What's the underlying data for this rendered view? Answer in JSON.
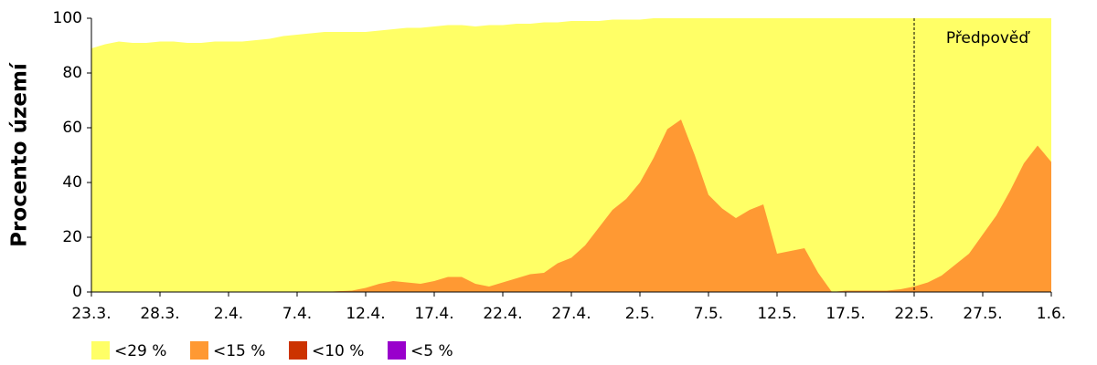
{
  "chart_data": {
    "type": "area",
    "ylabel": "Procento území",
    "annotation": {
      "text": "Předpověď",
      "x": "22.5."
    },
    "categories": [
      "23.3.",
      null,
      null,
      null,
      null,
      "28.3.",
      null,
      null,
      null,
      null,
      "2.4.",
      null,
      null,
      null,
      null,
      "7.4.",
      null,
      null,
      null,
      null,
      "12.4.",
      null,
      null,
      null,
      null,
      "17.4.",
      null,
      null,
      null,
      null,
      "22.4.",
      null,
      null,
      null,
      null,
      "27.4.",
      null,
      null,
      null,
      null,
      "2.5.",
      null,
      null,
      null,
      null,
      "7.5.",
      null,
      null,
      null,
      null,
      "12.5.",
      null,
      null,
      null,
      null,
      "17.5.",
      null,
      null,
      null,
      null,
      "22.5.",
      null,
      null,
      null,
      null,
      "27.5.",
      null,
      null,
      null,
      null,
      "1.6."
    ],
    "ylim": [
      0,
      100
    ],
    "yticks": [
      0,
      20,
      40,
      60,
      80,
      100
    ],
    "series": [
      {
        "name": "<29 %",
        "color": "#ffff66",
        "values": [
          89,
          90.5,
          91.5,
          91,
          91,
          91.5,
          91.5,
          91,
          91,
          91.5,
          91.5,
          91.5,
          92,
          92.5,
          93.5,
          94,
          94.5,
          95,
          95,
          95,
          95,
          95.5,
          96,
          96.5,
          96.5,
          97,
          97.5,
          97.5,
          97,
          97.5,
          97.5,
          98,
          98,
          98.5,
          98.5,
          99,
          99,
          99,
          99.5,
          99.5,
          99.5,
          100,
          100,
          100,
          100,
          100,
          100,
          100,
          100,
          100,
          100,
          100,
          100,
          100,
          100,
          100,
          100,
          100,
          100,
          100,
          100,
          100,
          100,
          100,
          100,
          100,
          100,
          100,
          100,
          100,
          100
        ]
      },
      {
        "name": "<15 %",
        "color": "#ff9933",
        "values": [
          0,
          0,
          0,
          0,
          0,
          0,
          0,
          0,
          0,
          0,
          0,
          0,
          0,
          0,
          0,
          0,
          0,
          0,
          0.3,
          0.5,
          1.5,
          3,
          4,
          3.5,
          3,
          4,
          5.5,
          5.5,
          3,
          2,
          3.5,
          5,
          6.5,
          7,
          10.5,
          12.5,
          17,
          23.5,
          30,
          34,
          40,
          49,
          59.5,
          63,
          50,
          35.5,
          30.5,
          27,
          30,
          32,
          14,
          15,
          16,
          7,
          0,
          0.5,
          0.5,
          0.5,
          0.5,
          1,
          2,
          3.5,
          6,
          10,
          14,
          21,
          28,
          37,
          47,
          53.5,
          47.5
        ]
      },
      {
        "name": "<10 %",
        "color": "#cc3300",
        "values": [
          0,
          0,
          0,
          0,
          0,
          0,
          0,
          0,
          0,
          0,
          0,
          0,
          0,
          0,
          0,
          0,
          0,
          0,
          0,
          0,
          0,
          0,
          0,
          0,
          0,
          0,
          0,
          0,
          0,
          0,
          0,
          0,
          0,
          0,
          0,
          0,
          0,
          0,
          0,
          0,
          0,
          0,
          0,
          0,
          0,
          0,
          0,
          0,
          0,
          0,
          0,
          0,
          0,
          0,
          0,
          0,
          0,
          0,
          0,
          0,
          0,
          0,
          0,
          0,
          0,
          0,
          0,
          0,
          0,
          0,
          0
        ]
      },
      {
        "name": "<5 %",
        "color": "#9900cc",
        "values": [
          0,
          0,
          0,
          0,
          0,
          0,
          0,
          0,
          0,
          0,
          0,
          0,
          0,
          0,
          0,
          0,
          0,
          0,
          0,
          0,
          0,
          0,
          0,
          0,
          0,
          0,
          0,
          0,
          0,
          0,
          0,
          0,
          0,
          0,
          0,
          0,
          0,
          0,
          0,
          0,
          0,
          0,
          0,
          0,
          0,
          0,
          0,
          0,
          0,
          0,
          0,
          0,
          0,
          0,
          0,
          0,
          0,
          0,
          0,
          0,
          0,
          0,
          0,
          0,
          0,
          0,
          0,
          0,
          0,
          0,
          0
        ]
      }
    ]
  }
}
